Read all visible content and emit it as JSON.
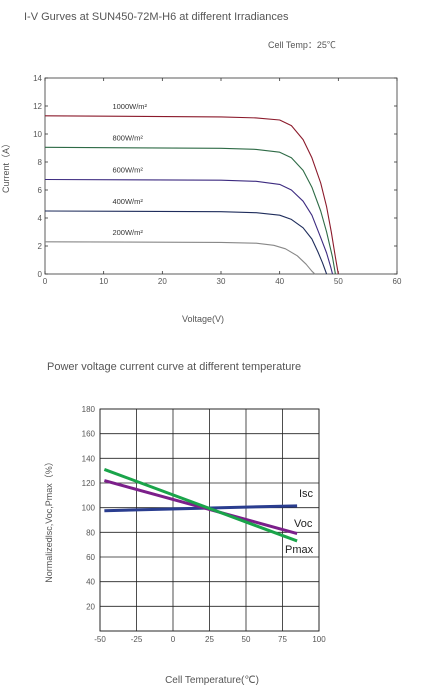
{
  "chart_data": [
    {
      "type": "line",
      "title": "I-V Gurves at SUN450-72M-H6 at different Irradiances",
      "subtitle": "Cell Temp：25℃",
      "xlabel": "Voltage(V)",
      "ylabel": "Current（A）",
      "xlim": [
        0,
        60
      ],
      "ylim": [
        0,
        14
      ],
      "xticks": [
        "0",
        "10",
        "20",
        "30",
        "40",
        "50",
        "60"
      ],
      "yticks": [
        "0",
        "2",
        "4",
        "6",
        "8",
        "10",
        "12",
        "14"
      ],
      "grid": false,
      "series": [
        {
          "name": "1000W/m²",
          "color": "#8b1a2b",
          "points": [
            [
              0,
              11.3
            ],
            [
              30,
              11.22
            ],
            [
              36,
              11.15
            ],
            [
              40,
              11.0
            ],
            [
              42,
              10.6
            ],
            [
              44,
              9.6
            ],
            [
              45.5,
              8.3
            ],
            [
              47,
              6.5
            ],
            [
              48,
              4.8
            ],
            [
              48.8,
              3.0
            ],
            [
              49.5,
              1.2
            ],
            [
              50,
              0
            ]
          ]
        },
        {
          "name": "800W/m²",
          "color": "#2e6b46",
          "points": [
            [
              0,
              9.05
            ],
            [
              30,
              8.98
            ],
            [
              36,
              8.9
            ],
            [
              40,
              8.7
            ],
            [
              42,
              8.3
            ],
            [
              44,
              7.4
            ],
            [
              45.5,
              6.2
            ],
            [
              47,
              4.5
            ],
            [
              48,
              3.0
            ],
            [
              49,
              1.2
            ],
            [
              49.5,
              0
            ]
          ]
        },
        {
          "name": "600W/m²",
          "color": "#3d2b80",
          "points": [
            [
              0,
              6.75
            ],
            [
              30,
              6.7
            ],
            [
              36,
              6.62
            ],
            [
              40,
              6.4
            ],
            [
              42,
              6.0
            ],
            [
              44,
              5.2
            ],
            [
              45.5,
              4.2
            ],
            [
              47,
              2.6
            ],
            [
              48,
              1.5
            ],
            [
              48.7,
              0.5
            ],
            [
              49,
              0
            ]
          ]
        },
        {
          "name": "400W/m²",
          "color": "#1f2d5c",
          "points": [
            [
              0,
              4.5
            ],
            [
              30,
              4.45
            ],
            [
              36,
              4.38
            ],
            [
              40,
              4.2
            ],
            [
              42,
              3.9
            ],
            [
              44,
              3.3
            ],
            [
              45.5,
              2.5
            ],
            [
              46.5,
              1.6
            ],
            [
              47.3,
              0.8
            ],
            [
              48,
              0
            ]
          ]
        },
        {
          "name": "200W/m²",
          "color": "#888888",
          "points": [
            [
              0,
              2.3
            ],
            [
              30,
              2.26
            ],
            [
              36,
              2.2
            ],
            [
              39,
              2.05
            ],
            [
              41,
              1.8
            ],
            [
              43,
              1.3
            ],
            [
              44.5,
              0.7
            ],
            [
              45.5,
              0.2
            ],
            [
              46,
              0
            ]
          ]
        }
      ]
    },
    {
      "type": "line",
      "title": "Power voltage current curve at different temperature",
      "xlabel": "Cell Temperature(℃)",
      "ylabel": "Normalizedlsc,Voc,Pmax（%）",
      "xlim": [
        -50,
        100
      ],
      "ylim": [
        0,
        180
      ],
      "xticks": [
        "-50",
        "-25",
        "0",
        "25",
        "50",
        "75",
        "100"
      ],
      "yticks": [
        "20",
        "40",
        "60",
        "80",
        "100",
        "120",
        "140",
        "160",
        "180"
      ],
      "grid": true,
      "series": [
        {
          "name": "Isc",
          "color": "#2a3d8f",
          "points": [
            [
              -47,
              97.5
            ],
            [
              85,
              101.5
            ]
          ]
        },
        {
          "name": "Voc",
          "color": "#7b1f8a",
          "points": [
            [
              -47,
              122
            ],
            [
              85,
              79
            ]
          ]
        },
        {
          "name": "Pmax",
          "color": "#1aa44a",
          "points": [
            [
              -47,
              131
            ],
            [
              85,
              73
            ]
          ]
        }
      ]
    }
  ]
}
